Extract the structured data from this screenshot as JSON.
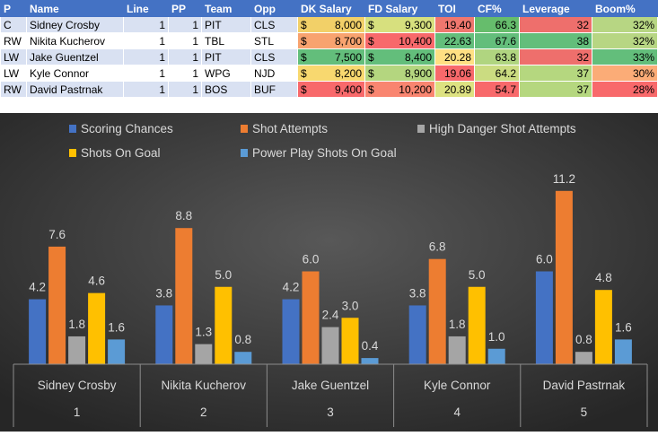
{
  "table": {
    "headers": [
      "P",
      "Name",
      "Line",
      "PP",
      "Team",
      "Opp",
      "DK Salary",
      "FD Salary",
      "TOI",
      "CF%",
      "Leverage",
      "Boom%"
    ],
    "rows": [
      {
        "pos": "C",
        "name": "Sidney Crosby",
        "line": "1",
        "pp": "1",
        "team": "PIT",
        "opp": "CLS",
        "dk": "8,000",
        "fd": "9,300",
        "toi": "19.40",
        "cf": "66.3",
        "lev": "32",
        "boom": "32%",
        "colors": {
          "dk": "#f2d068",
          "fd": "#d7e07e",
          "toi": "#f0776e",
          "cf": "#66bd6c",
          "lev": "#ee6f6c",
          "boom": "#b7d683"
        }
      },
      {
        "pos": "RW",
        "name": "Nikita Kucherov",
        "line": "1",
        "pp": "1",
        "team": "TBL",
        "opp": "STL",
        "dk": "8,700",
        "fd": "10,400",
        "toi": "22.63",
        "cf": "67.6",
        "lev": "38",
        "boom": "32%",
        "colors": {
          "dk": "#f8a36f",
          "fd": "#f8696b",
          "toi": "#63be7b",
          "cf": "#63be7b",
          "lev": "#63be7b",
          "boom": "#b7d683"
        }
      },
      {
        "pos": "LW",
        "name": "Jake Guentzel",
        "line": "1",
        "pp": "1",
        "team": "PIT",
        "opp": "CLS",
        "dk": "7,500",
        "fd": "8,400",
        "toi": "20.28",
        "cf": "63.8",
        "lev": "32",
        "boom": "33%",
        "colors": {
          "dk": "#63be7b",
          "fd": "#63be7b",
          "toi": "#ffe083",
          "cf": "#b0d580",
          "lev": "#ee6f6c",
          "boom": "#63be7b"
        }
      },
      {
        "pos": "LW",
        "name": "Kyle Connor",
        "line": "1",
        "pp": "1",
        "team": "WPG",
        "opp": "NJD",
        "dk": "8,200",
        "fd": "8,900",
        "toi": "19.06",
        "cf": "64.2",
        "lev": "37",
        "boom": "30%",
        "colors": {
          "dk": "#f8d86f",
          "fd": "#b4d67f",
          "toi": "#f8696b",
          "cf": "#cbdc81",
          "lev": "#b5d77f",
          "boom": "#fbac77"
        }
      },
      {
        "pos": "RW",
        "name": "David Pastrnak",
        "line": "1",
        "pp": "1",
        "team": "BOS",
        "opp": "BUF",
        "dk": "9,400",
        "fd": "10,200",
        "toi": "20.89",
        "cf": "54.7",
        "lev": "37",
        "boom": "28%",
        "colors": {
          "dk": "#f8696b",
          "fd": "#f98570",
          "toi": "#dde281",
          "cf": "#f8696b",
          "lev": "#b5d77f",
          "boom": "#f8696b"
        }
      }
    ]
  },
  "chart_data": {
    "type": "bar",
    "categories": [
      "Sidney Crosby",
      "Nikita Kucherov",
      "Jake Guentzel",
      "Kyle Connor",
      "David Pastrnak"
    ],
    "group_labels": [
      "1",
      "2",
      "3",
      "4",
      "5"
    ],
    "series": [
      {
        "name": "Scoring Chances",
        "color": "#4472c4",
        "values": [
          4.2,
          3.8,
          4.2,
          3.8,
          6.0
        ]
      },
      {
        "name": "Shot Attempts",
        "color": "#ed7d31",
        "values": [
          7.6,
          8.8,
          6.0,
          6.8,
          11.2
        ]
      },
      {
        "name": "High Danger Shot Attempts",
        "color": "#a5a5a5",
        "values": [
          1.8,
          1.3,
          2.4,
          1.8,
          0.8
        ]
      },
      {
        "name": "Shots On Goal",
        "color": "#ffc000",
        "values": [
          4.6,
          5.0,
          3.0,
          5.0,
          4.8
        ]
      },
      {
        "name": "Power Play Shots On Goal",
        "color": "#5b9bd5",
        "values": [
          1.6,
          0.8,
          0.4,
          1.0,
          1.6
        ]
      }
    ],
    "ylim": [
      0,
      12
    ],
    "grid": false,
    "legend_position": "top"
  }
}
